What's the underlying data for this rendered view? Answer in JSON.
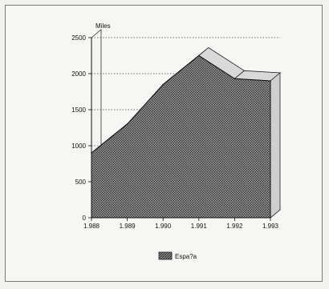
{
  "chart_data": {
    "type": "area",
    "ylabel": "Miles",
    "x": [
      "1.988",
      "1.989",
      "1.990",
      "1.991",
      "1.992",
      "1.993"
    ],
    "y_ticks": [
      "0",
      "500",
      "1000",
      "1500",
      "2000",
      "2500"
    ],
    "ylim": [
      0,
      2500
    ],
    "series": [
      {
        "name": "España",
        "values": [
          900,
          1300,
          1850,
          2250,
          1930,
          1900
        ]
      }
    ],
    "legend_label": "Espa?a",
    "grid": "dotted horizontal",
    "legend": "bottom-center",
    "colors": {
      "fill": "#6a6a6a",
      "depth": "#d9d9d9",
      "axis": "#222222"
    }
  }
}
